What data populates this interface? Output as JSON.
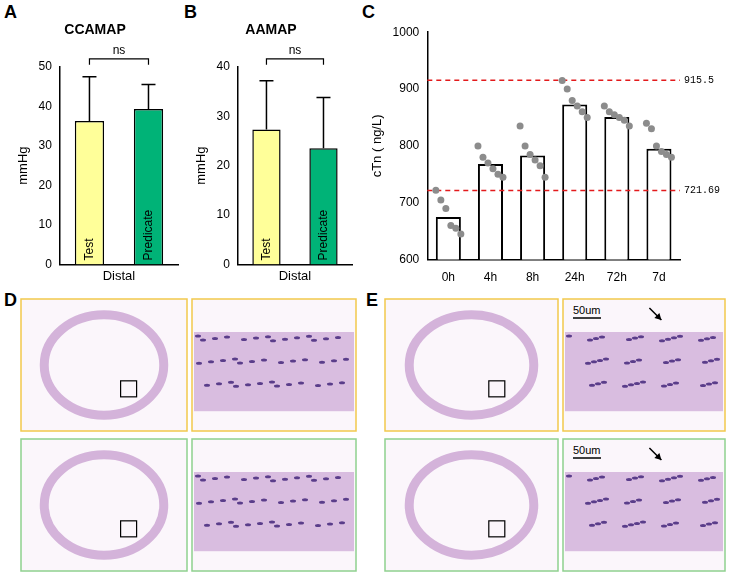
{
  "chart_data": [
    {
      "panel": "A",
      "type": "bar",
      "title": "CCAMAP",
      "x_label": "Distal",
      "y_label": "mmHg",
      "categories": [
        "Test",
        "Predicate"
      ],
      "values": [
        36.3,
        39.3
      ],
      "errors": [
        11.2,
        6.2
      ],
      "colors": [
        "#ffff99",
        "#00b377"
      ],
      "ylim": [
        0,
        50
      ],
      "yticks": [
        0,
        10,
        20,
        30,
        40,
        50
      ],
      "grid": false,
      "tick_labels": "y",
      "annotation": "ns"
    },
    {
      "panel": "B",
      "type": "bar",
      "title": "AAMAP",
      "x_label": "Distal",
      "y_label": "mmHg",
      "categories": [
        "Test",
        "Predicate"
      ],
      "values": [
        27.3,
        23.5
      ],
      "errors": [
        9.9,
        10.3
      ],
      "colors": [
        "#ffff99",
        "#00b377"
      ],
      "ylim": [
        0,
        40
      ],
      "yticks": [
        0,
        10,
        20,
        30,
        40
      ],
      "grid": false,
      "tick_labels": "y",
      "annotation": "ns"
    },
    {
      "panel": "C",
      "type": "bar",
      "y_label": "cTn ( ng/L)",
      "categories": [
        "0h",
        "4h",
        "8h",
        "24h",
        "72h",
        "7d"
      ],
      "values": [
        675,
        768,
        783,
        873,
        851,
        795
      ],
      "points": [
        [
          722,
          705,
          690,
          660,
          655,
          645
        ],
        [
          800,
          780,
          770,
          760,
          750,
          745
        ],
        [
          835,
          800,
          785,
          775,
          765,
          745
        ],
        [
          915,
          900,
          880,
          870,
          860,
          850
        ],
        [
          870,
          860,
          855,
          850,
          845,
          835
        ],
        [
          840,
          830,
          800,
          790,
          785,
          780
        ]
      ],
      "reference_lines": [
        915.5,
        721.69
      ],
      "color": "#ffffff",
      "ylim": [
        600,
        1000
      ],
      "yticks": [
        600,
        700,
        800,
        900,
        1000
      ],
      "grid": false,
      "tick_labels": true
    }
  ],
  "images": [
    {
      "panel": "D",
      "scale_bars": []
    },
    {
      "panel": "E",
      "scale_bars": [
        "50um",
        "50um"
      ]
    }
  ]
}
